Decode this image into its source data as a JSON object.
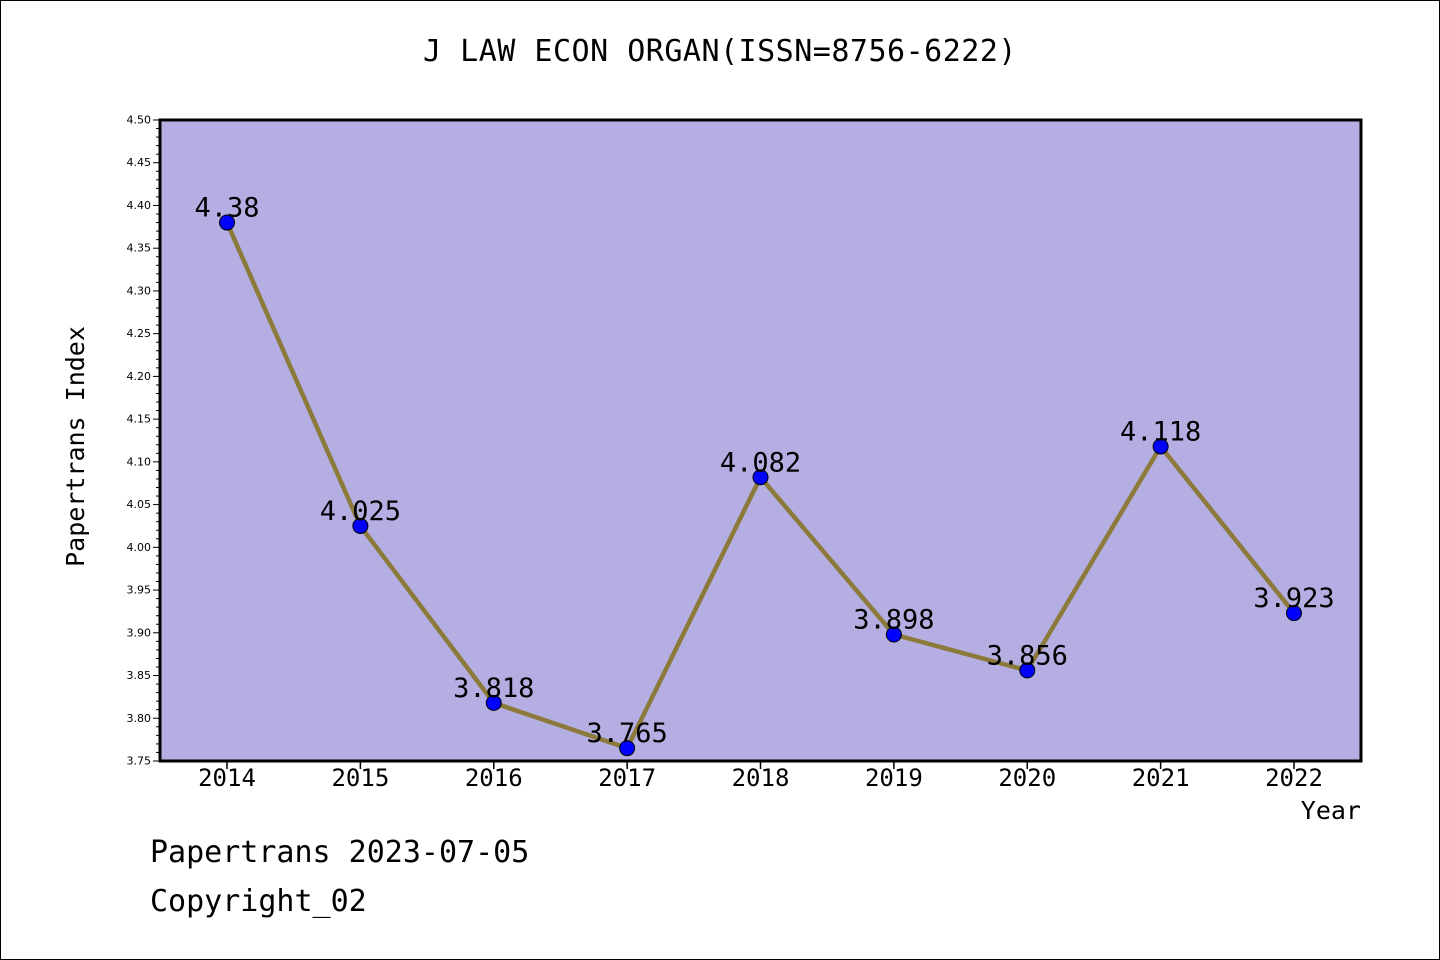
{
  "chart_data": {
    "type": "line",
    "title": "J LAW ECON ORGAN(ISSN=8756-6222)",
    "xlabel": "Year",
    "ylabel": "Papertrans Index",
    "categories": [
      "2014",
      "2015",
      "2016",
      "2017",
      "2018",
      "2019",
      "2020",
      "2021",
      "2022"
    ],
    "series": [
      {
        "values": [
          4.38,
          4.025,
          3.818,
          3.765,
          4.082,
          3.898,
          3.856,
          4.118,
          3.923
        ],
        "data_labels": [
          "4.38",
          "4.025",
          "3.818",
          "3.765",
          "4.082",
          "3.898",
          "3.856",
          "4.118",
          "3.923"
        ]
      }
    ],
    "ylim": [
      3.75,
      4.5
    ],
    "yticks": [
      "3.75",
      "3.80",
      "3.85",
      "3.90",
      "3.95",
      "4.00",
      "4.05",
      "4.10",
      "4.15",
      "4.20",
      "4.25",
      "4.30",
      "4.35",
      "4.40",
      "4.45",
      "4.50"
    ],
    "grid": false,
    "colors": {
      "plot_background": "#b4aee2",
      "line": "#8b7a3a",
      "marker": "#0000ff",
      "axis": "#000000"
    }
  },
  "footer": {
    "line1": "Papertrans 2023-07-05",
    "line2": "Copyright_02"
  }
}
